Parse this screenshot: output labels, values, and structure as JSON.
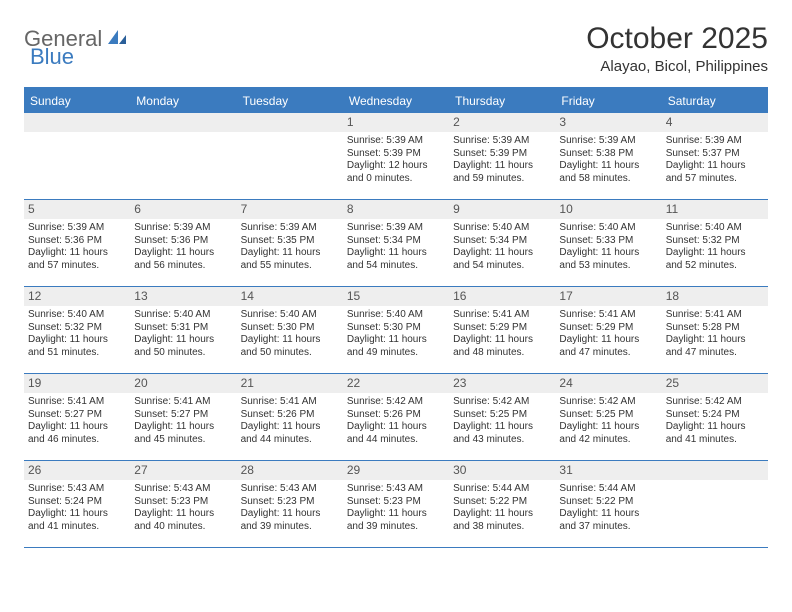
{
  "logo": {
    "text_a": "General",
    "text_b": "Blue"
  },
  "title": "October 2025",
  "location": "Alayao, Bicol, Philippines",
  "colors": {
    "header_bg": "#3b7bbf",
    "header_text": "#ffffff",
    "daynum_bg": "#eeeeee",
    "border": "#3b7bbf",
    "body_bg": "#ffffff",
    "text": "#333333"
  },
  "day_headers": [
    "Sunday",
    "Monday",
    "Tuesday",
    "Wednesday",
    "Thursday",
    "Friday",
    "Saturday"
  ],
  "weeks": [
    [
      {
        "n": "",
        "sr": "",
        "ss": "",
        "dl": ""
      },
      {
        "n": "",
        "sr": "",
        "ss": "",
        "dl": ""
      },
      {
        "n": "",
        "sr": "",
        "ss": "",
        "dl": ""
      },
      {
        "n": "1",
        "sr": "5:39 AM",
        "ss": "5:39 PM",
        "dl": "12 hours and 0 minutes."
      },
      {
        "n": "2",
        "sr": "5:39 AM",
        "ss": "5:39 PM",
        "dl": "11 hours and 59 minutes."
      },
      {
        "n": "3",
        "sr": "5:39 AM",
        "ss": "5:38 PM",
        "dl": "11 hours and 58 minutes."
      },
      {
        "n": "4",
        "sr": "5:39 AM",
        "ss": "5:37 PM",
        "dl": "11 hours and 57 minutes."
      }
    ],
    [
      {
        "n": "5",
        "sr": "5:39 AM",
        "ss": "5:36 PM",
        "dl": "11 hours and 57 minutes."
      },
      {
        "n": "6",
        "sr": "5:39 AM",
        "ss": "5:36 PM",
        "dl": "11 hours and 56 minutes."
      },
      {
        "n": "7",
        "sr": "5:39 AM",
        "ss": "5:35 PM",
        "dl": "11 hours and 55 minutes."
      },
      {
        "n": "8",
        "sr": "5:39 AM",
        "ss": "5:34 PM",
        "dl": "11 hours and 54 minutes."
      },
      {
        "n": "9",
        "sr": "5:40 AM",
        "ss": "5:34 PM",
        "dl": "11 hours and 54 minutes."
      },
      {
        "n": "10",
        "sr": "5:40 AM",
        "ss": "5:33 PM",
        "dl": "11 hours and 53 minutes."
      },
      {
        "n": "11",
        "sr": "5:40 AM",
        "ss": "5:32 PM",
        "dl": "11 hours and 52 minutes."
      }
    ],
    [
      {
        "n": "12",
        "sr": "5:40 AM",
        "ss": "5:32 PM",
        "dl": "11 hours and 51 minutes."
      },
      {
        "n": "13",
        "sr": "5:40 AM",
        "ss": "5:31 PM",
        "dl": "11 hours and 50 minutes."
      },
      {
        "n": "14",
        "sr": "5:40 AM",
        "ss": "5:30 PM",
        "dl": "11 hours and 50 minutes."
      },
      {
        "n": "15",
        "sr": "5:40 AM",
        "ss": "5:30 PM",
        "dl": "11 hours and 49 minutes."
      },
      {
        "n": "16",
        "sr": "5:41 AM",
        "ss": "5:29 PM",
        "dl": "11 hours and 48 minutes."
      },
      {
        "n": "17",
        "sr": "5:41 AM",
        "ss": "5:29 PM",
        "dl": "11 hours and 47 minutes."
      },
      {
        "n": "18",
        "sr": "5:41 AM",
        "ss": "5:28 PM",
        "dl": "11 hours and 47 minutes."
      }
    ],
    [
      {
        "n": "19",
        "sr": "5:41 AM",
        "ss": "5:27 PM",
        "dl": "11 hours and 46 minutes."
      },
      {
        "n": "20",
        "sr": "5:41 AM",
        "ss": "5:27 PM",
        "dl": "11 hours and 45 minutes."
      },
      {
        "n": "21",
        "sr": "5:41 AM",
        "ss": "5:26 PM",
        "dl": "11 hours and 44 minutes."
      },
      {
        "n": "22",
        "sr": "5:42 AM",
        "ss": "5:26 PM",
        "dl": "11 hours and 44 minutes."
      },
      {
        "n": "23",
        "sr": "5:42 AM",
        "ss": "5:25 PM",
        "dl": "11 hours and 43 minutes."
      },
      {
        "n": "24",
        "sr": "5:42 AM",
        "ss": "5:25 PM",
        "dl": "11 hours and 42 minutes."
      },
      {
        "n": "25",
        "sr": "5:42 AM",
        "ss": "5:24 PM",
        "dl": "11 hours and 41 minutes."
      }
    ],
    [
      {
        "n": "26",
        "sr": "5:43 AM",
        "ss": "5:24 PM",
        "dl": "11 hours and 41 minutes."
      },
      {
        "n": "27",
        "sr": "5:43 AM",
        "ss": "5:23 PM",
        "dl": "11 hours and 40 minutes."
      },
      {
        "n": "28",
        "sr": "5:43 AM",
        "ss": "5:23 PM",
        "dl": "11 hours and 39 minutes."
      },
      {
        "n": "29",
        "sr": "5:43 AM",
        "ss": "5:23 PM",
        "dl": "11 hours and 39 minutes."
      },
      {
        "n": "30",
        "sr": "5:44 AM",
        "ss": "5:22 PM",
        "dl": "11 hours and 38 minutes."
      },
      {
        "n": "31",
        "sr": "5:44 AM",
        "ss": "5:22 PM",
        "dl": "11 hours and 37 minutes."
      },
      {
        "n": "",
        "sr": "",
        "ss": "",
        "dl": ""
      }
    ]
  ],
  "labels": {
    "sunrise": "Sunrise:",
    "sunset": "Sunset:",
    "daylight": "Daylight:"
  }
}
